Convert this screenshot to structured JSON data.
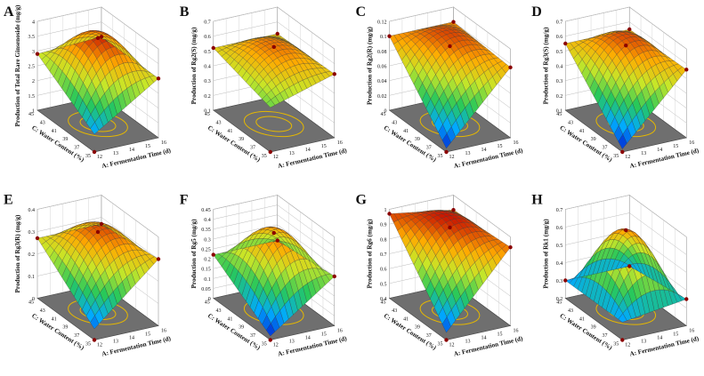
{
  "figure": {
    "background": "#ffffff",
    "floor_color": "#6f6f6f",
    "contour_color": "#e6b800",
    "point_color": "#8b0000"
  },
  "chart_data": [
    {
      "panel": "A",
      "type": "surface3d",
      "zlabel": "Production of Total Rare Ginsenoside (mg/g)",
      "zticks": [
        "1",
        "1.5",
        "2",
        "2.5",
        "3",
        "3.5",
        "4"
      ],
      "zlim": [
        1,
        4
      ],
      "xlabel": "A: Fermentation Time (d)",
      "xticks": [
        "12",
        "13",
        "14",
        "15",
        "16"
      ],
      "ylabel": "C: Water Content (%)",
      "yticks": [
        "35",
        "37",
        "39",
        "41",
        "43",
        "45"
      ],
      "peak": 3.9,
      "corners": [
        2.9,
        3.0,
        3.0,
        1.6
      ]
    },
    {
      "panel": "B",
      "type": "surface3d",
      "zlabel": "Production of Rg2(S) (mg/g)",
      "zticks": [
        "0.1",
        "0.2",
        "0.3",
        "0.4",
        "0.5",
        "0.6",
        "0.7"
      ],
      "zlim": [
        0.1,
        0.7
      ],
      "xlabel": "A: Fermentation Time (d)",
      "xticks": [
        "12",
        "13",
        "14",
        "15",
        "16"
      ],
      "ylabel": "C: Water Content (%)",
      "yticks": [
        "35",
        "37",
        "39",
        "41",
        "43",
        "45"
      ],
      "peak": 0.62,
      "corners": [
        0.52,
        0.52,
        0.53,
        0.4
      ]
    },
    {
      "panel": "C",
      "type": "surface3d",
      "zlabel": "Production of Rg2(R) (mg/g)",
      "zticks": [
        "0",
        "0.02",
        "0.04",
        "0.06",
        "0.08",
        "0.1",
        "0.12"
      ],
      "zlim": [
        0,
        0.12
      ],
      "xlabel": "A: Fermentation Time (d)",
      "xticks": [
        "12",
        "13",
        "14",
        "15",
        "16"
      ],
      "ylabel": "C: Water Content (%)",
      "yticks": [
        "35",
        "37",
        "39",
        "41",
        "43",
        "45"
      ],
      "peak": 0.105,
      "corners": [
        0.1,
        0.1,
        0.095,
        0.005
      ]
    },
    {
      "panel": "D",
      "type": "surface3d",
      "zlabel": "Production of Rg3(S) (mg/g)",
      "zticks": [
        "0.1",
        "0.2",
        "0.3",
        "0.4",
        "0.5",
        "0.6",
        "0.7"
      ],
      "zlim": [
        0.1,
        0.7
      ],
      "xlabel": "A: Fermentation Time (d)",
      "xticks": [
        "12",
        "13",
        "14",
        "15",
        "16"
      ],
      "ylabel": "C: Water Content (%)",
      "yticks": [
        "35",
        "37",
        "39",
        "41",
        "43",
        "45"
      ],
      "peak": 0.63,
      "corners": [
        0.55,
        0.55,
        0.56,
        0.12
      ]
    },
    {
      "panel": "E",
      "type": "surface3d",
      "zlabel": "Production of Rg3(R) (mg/g)",
      "zticks": [
        "0",
        "0.1",
        "0.2",
        "0.3",
        "0.4"
      ],
      "zlim": [
        0,
        0.4
      ],
      "xlabel": "A: Fermentation Time (d)",
      "xticks": [
        "12",
        "13",
        "14",
        "15",
        "16"
      ],
      "ylabel": "C: Water Content (%)",
      "yticks": [
        "35",
        "37",
        "39",
        "41",
        "43",
        "45"
      ],
      "peak": 0.36,
      "corners": [
        0.27,
        0.27,
        0.3,
        0.05
      ]
    },
    {
      "panel": "F",
      "type": "surface3d",
      "zlabel": "Production of Rg5 (mg/g)",
      "zticks": [
        "0",
        "0.05",
        "0.1",
        "0.15",
        "0.2",
        "0.25",
        "0.3",
        "0.35",
        "0.4",
        "0.45"
      ],
      "zlim": [
        0,
        0.45
      ],
      "xlabel": "A: Fermentation Time (d)",
      "xticks": [
        "12",
        "13",
        "14",
        "15",
        "16"
      ],
      "ylabel": "C: Water Content (%)",
      "yticks": [
        "35",
        "37",
        "39",
        "41",
        "43",
        "45"
      ],
      "peak": 0.4,
      "corners": [
        0.22,
        0.22,
        0.25,
        0.02
      ]
    },
    {
      "panel": "G",
      "type": "surface3d",
      "zlabel": "Production of Rg6 (mg/g)",
      "zticks": [
        "0.4",
        "0.5",
        "0.6",
        "0.7",
        "0.8",
        "0.9",
        "1"
      ],
      "zlim": [
        0.4,
        1
      ],
      "xlabel": "A: Fermentation Time (d)",
      "xticks": [
        "12",
        "13",
        "14",
        "15",
        "16"
      ],
      "ylabel": "C: Water Content (%)",
      "yticks": [
        "35",
        "37",
        "39",
        "41",
        "43",
        "45"
      ],
      "peak": 0.97,
      "corners": [
        0.97,
        0.9,
        0.93,
        0.45
      ]
    },
    {
      "panel": "H",
      "type": "surface3d",
      "zlabel": "Production of Rk1 (mg/g)",
      "zticks": [
        "0.2",
        "0.3",
        "0.4",
        "0.5",
        "0.6",
        "0.7"
      ],
      "zlim": [
        0.2,
        0.7
      ],
      "xlabel": "A: Fermentation Time (d)",
      "xticks": [
        "12",
        "13",
        "14",
        "15",
        "16"
      ],
      "ylabel": "C: Water Content (%)",
      "yticks": [
        "35",
        "37",
        "39",
        "41",
        "43",
        "45"
      ],
      "peak": 0.66,
      "corners": [
        0.3,
        0.3,
        0.35,
        0.3
      ]
    }
  ]
}
